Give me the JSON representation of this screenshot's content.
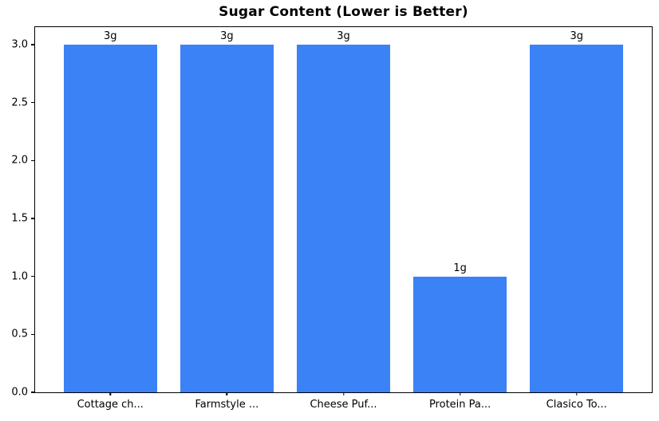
{
  "chart_data": {
    "type": "bar",
    "title": "Sugar Content (Lower is Better)",
    "categories": [
      "Cottage ch...",
      "Farmstyle ...",
      "Cheese Puf...",
      "Protein Pa...",
      "Clasico To..."
    ],
    "values": [
      3,
      3,
      3,
      1,
      3
    ],
    "bar_labels": [
      "3g",
      "3g",
      "3g",
      "1g",
      "3g"
    ],
    "xlabel": "",
    "ylabel": "",
    "ylim": [
      0,
      3.15
    ],
    "yticks": [
      0.0,
      0.5,
      1.0,
      1.5,
      2.0,
      2.5,
      3.0
    ],
    "ytick_labels": [
      "0.0",
      "0.5",
      "1.0",
      "1.5",
      "2.0",
      "2.5",
      "3.0"
    ],
    "grid": false,
    "legend": null,
    "bar_width_fraction": 0.8,
    "x_margin_units": 0.645
  },
  "colors": {
    "bar": "#3b82f6",
    "axis": "#000000",
    "text": "#000000",
    "background": "#ffffff"
  }
}
